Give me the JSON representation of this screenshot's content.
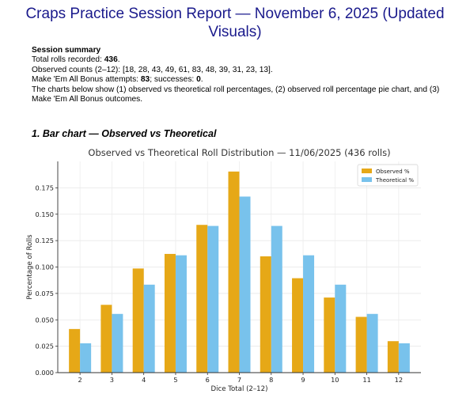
{
  "report": {
    "title": "Craps Practice Session Report — November 6, 2025 (Updated Visuals)",
    "summary_heading": "Session summary",
    "total_label": "Total rolls recorded: ",
    "total_value": "436",
    "total_suffix": ".",
    "counts_line": "Observed counts (2–12): [18, 28, 43, 49, 61, 83, 48, 39, 31, 23, 13].",
    "bonus_label1": "Make 'Em All Bonus attempts: ",
    "bonus_attempts": "83",
    "bonus_label2": "; successes: ",
    "bonus_successes": "0",
    "bonus_suffix": ".",
    "charts_note": "The charts below show (1) observed vs theoretical roll percentages, (2) observed roll percentage pie chart, and (3) Make 'Em All Bonus outcomes.",
    "section1": "1. Bar chart — Observed vs Theoretical"
  },
  "chart_data": {
    "type": "bar",
    "title": "Observed vs Theoretical Roll Distribution — 11/06/2025 (436 rolls)",
    "xlabel": "Dice Total (2–12)",
    "ylabel": "Percentage of Rolls",
    "categories": [
      "2",
      "3",
      "4",
      "5",
      "6",
      "7",
      "8",
      "9",
      "10",
      "11",
      "12"
    ],
    "series": [
      {
        "name": "Observed %",
        "color": "#e6a817",
        "values": [
          0.0413,
          0.0642,
          0.0986,
          0.1124,
          0.1399,
          0.1904,
          0.1101,
          0.0894,
          0.0711,
          0.0528,
          0.0298
        ]
      },
      {
        "name": "Theoretical %",
        "color": "#78c2ec",
        "values": [
          0.0278,
          0.0556,
          0.0833,
          0.1111,
          0.1389,
          0.1667,
          0.1389,
          0.1111,
          0.0833,
          0.0556,
          0.0278
        ]
      }
    ],
    "ylim": [
      0,
      0.2
    ],
    "yticks": [
      "0.000",
      "0.025",
      "0.050",
      "0.075",
      "0.100",
      "0.125",
      "0.150",
      "0.175"
    ],
    "grid": true,
    "legend": "top-right"
  }
}
